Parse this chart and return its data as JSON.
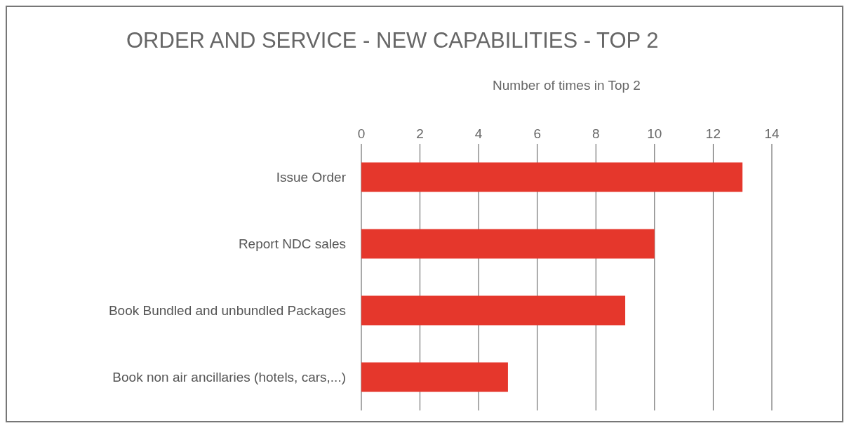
{
  "chart_data": {
    "type": "bar",
    "orientation": "horizontal",
    "title": "ORDER AND SERVICE - NEW CAPABILITIES - TOP 2",
    "xlabel": "Number of times in Top 2",
    "categories": [
      "Issue Order",
      "Report NDC sales",
      "Book Bundled and unbundled Packages",
      "Book non air ancillaries (hotels, cars,...)"
    ],
    "values": [
      13,
      10,
      9,
      5
    ],
    "color": "#e5372c",
    "xlim": [
      0,
      14
    ],
    "xticks": [
      0,
      2,
      4,
      6,
      8,
      10,
      12,
      14
    ],
    "grid": "x"
  }
}
